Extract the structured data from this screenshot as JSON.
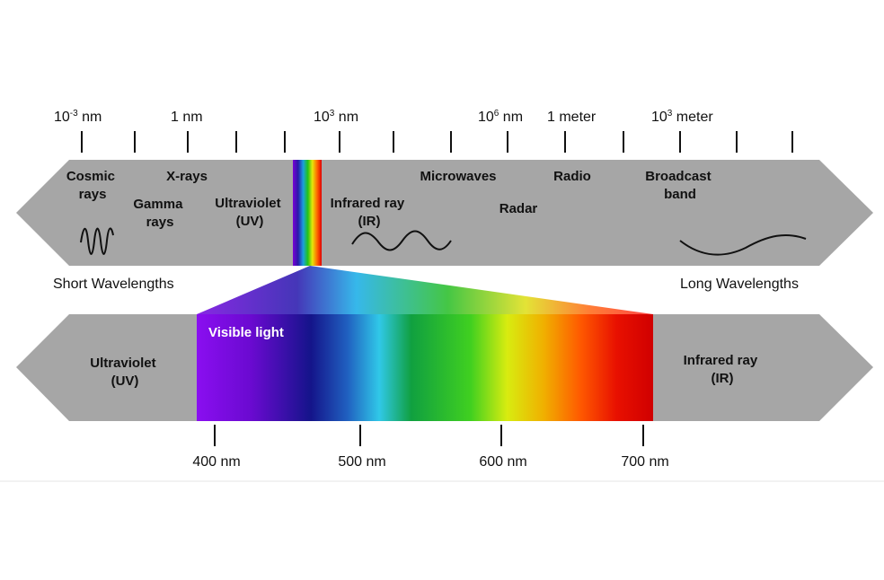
{
  "colors": {
    "band_gray": "#a6a6a6",
    "divider": "#e6e6e6",
    "text": "#111111",
    "visible_label": "#ffffff"
  },
  "top_scale": {
    "labels": [
      {
        "base": "10",
        "sup": "-3",
        "unit": " nm"
      },
      {
        "base": "1 nm",
        "sup": "",
        "unit": ""
      },
      {
        "base": "10",
        "sup": "3",
        "unit": " nm"
      },
      {
        "base": "10",
        "sup": "6",
        "unit": " nm"
      },
      {
        "base": "1 meter",
        "sup": "",
        "unit": ""
      },
      {
        "base": "10",
        "sup": "3",
        "unit": " meter"
      }
    ]
  },
  "top_band": {
    "regions": [
      {
        "lines": [
          "Cosmic",
          "rays"
        ]
      },
      {
        "lines": [
          "X-rays"
        ]
      },
      {
        "lines": [
          "Gamma",
          "rays"
        ]
      },
      {
        "lines": [
          "Ultraviolet",
          "(UV)"
        ]
      },
      {
        "lines": [
          "Infrared ray",
          "(IR)"
        ]
      },
      {
        "lines": [
          "Microwaves"
        ]
      },
      {
        "lines": [
          "Radar"
        ]
      },
      {
        "lines": [
          "Radio"
        ]
      },
      {
        "lines": [
          "Broadcast",
          "band"
        ]
      }
    ]
  },
  "side_labels": {
    "short": "Short Wavelengths",
    "long": "Long Wavelengths"
  },
  "bottom_band": {
    "left_label": [
      "Ultraviolet",
      "(UV)"
    ],
    "right_label": [
      "Infrared ray",
      "(IR)"
    ],
    "visible_label": "Visible light"
  },
  "bottom_scale": {
    "labels": [
      "400 nm",
      "500 nm",
      "600 nm",
      "700 nm"
    ]
  }
}
